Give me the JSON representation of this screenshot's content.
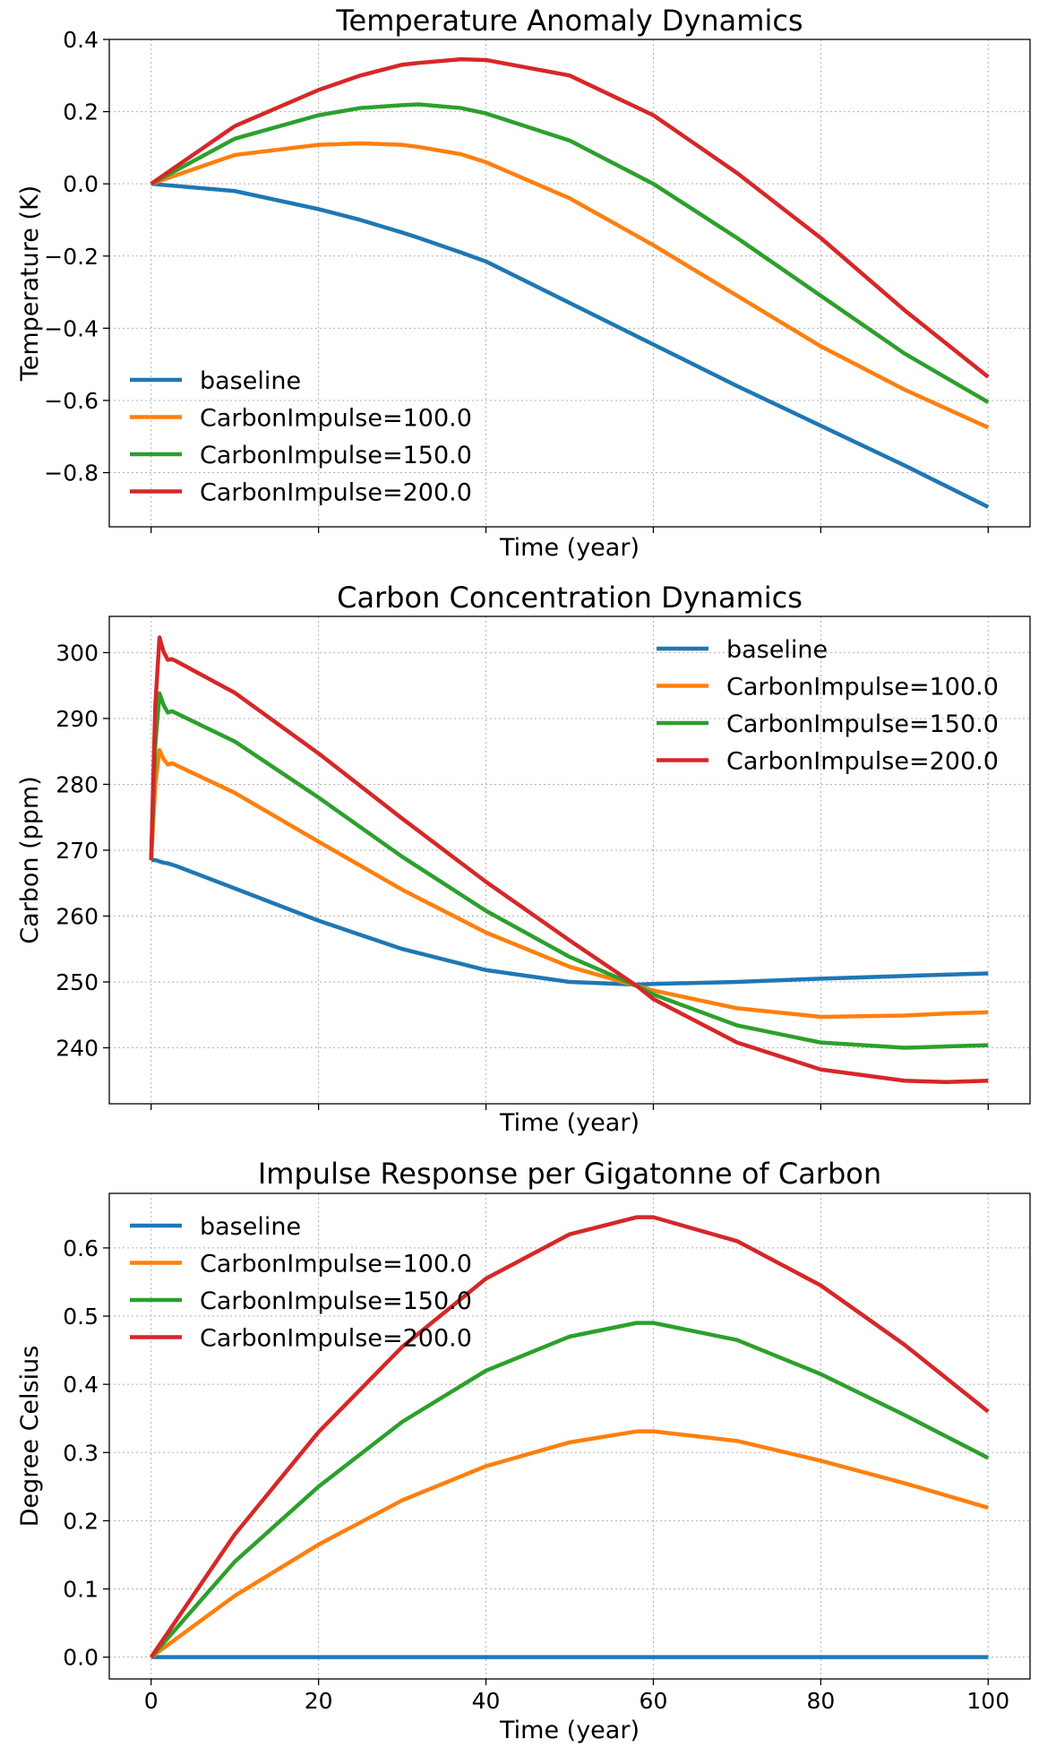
{
  "colors": {
    "baseline": "#1f77b4",
    "CarbonImpulse=100.0": "#ff7f0e",
    "CarbonImpulse=150.0": "#2ca02c",
    "CarbonImpulse=200.0": "#d62728"
  },
  "chart_data": [
    {
      "type": "line",
      "title": "Temperature Anomaly Dynamics",
      "xlabel": "Time (year)",
      "ylabel": "Temperature  (K)",
      "xlim": [
        -5,
        105
      ],
      "ylim": [
        -0.95,
        0.4
      ],
      "xticks": [
        0,
        20,
        40,
        60,
        80,
        100
      ],
      "show_xtick_labels": false,
      "yticks": [
        0.4,
        0.2,
        0.0,
        -0.2,
        -0.4,
        -0.6,
        -0.8
      ],
      "ytick_labels": [
        "0.4",
        "0.2",
        "0.0",
        "−0.2",
        "−0.4",
        "−0.6",
        "−0.8"
      ],
      "grid": true,
      "legend_position": "lower-left",
      "x": [
        0,
        10,
        20,
        25,
        30,
        32,
        37,
        40,
        50,
        60,
        70,
        80,
        90,
        100
      ],
      "series": [
        {
          "name": "baseline",
          "values": [
            0.0,
            -0.02,
            -0.07,
            -0.1,
            -0.135,
            -0.15,
            -0.19,
            -0.215,
            -0.33,
            -0.445,
            -0.56,
            -0.67,
            -0.78,
            -0.895
          ]
        },
        {
          "name": "CarbonImpulse=100.0",
          "values": [
            0.0,
            0.08,
            0.108,
            0.112,
            0.108,
            0.102,
            0.082,
            0.06,
            -0.04,
            -0.17,
            -0.31,
            -0.45,
            -0.57,
            -0.675
          ]
        },
        {
          "name": "CarbonImpulse=150.0",
          "values": [
            0.0,
            0.125,
            0.19,
            0.21,
            0.218,
            0.22,
            0.21,
            0.195,
            0.12,
            0.0,
            -0.15,
            -0.31,
            -0.47,
            -0.605
          ]
        },
        {
          "name": "CarbonImpulse=200.0",
          "values": [
            0.0,
            0.16,
            0.26,
            0.3,
            0.33,
            0.335,
            0.345,
            0.343,
            0.3,
            0.19,
            0.03,
            -0.15,
            -0.35,
            -0.535
          ]
        }
      ]
    },
    {
      "type": "line",
      "title": "Carbon Concentration Dynamics",
      "xlabel": "Time (year)",
      "ylabel": "Carbon (ppm)",
      "xlim": [
        -5,
        105
      ],
      "ylim": [
        231.5,
        305.5
      ],
      "xticks": [
        0,
        20,
        40,
        60,
        80,
        100
      ],
      "show_xtick_labels": false,
      "yticks": [
        300,
        290,
        280,
        270,
        260,
        250,
        240
      ],
      "ytick_labels": [
        "300",
        "290",
        "280",
        "270",
        "260",
        "250",
        "240"
      ],
      "grid": true,
      "legend_position": "upper-right",
      "x": [
        0,
        0.5,
        1,
        1.5,
        2,
        2.5,
        3,
        10,
        20,
        30,
        40,
        50,
        58,
        60,
        70,
        80,
        90,
        95,
        100
      ],
      "series": [
        {
          "name": "baseline",
          "values": [
            268.5,
            268.5,
            268.3,
            268.1,
            268.0,
            267.8,
            267.6,
            264.2,
            259.3,
            255.0,
            251.8,
            250.0,
            249.6,
            249.7,
            250.0,
            250.5,
            250.9,
            251.1,
            251.3
          ]
        },
        {
          "name": "CarbonImpulse=100.0",
          "values": [
            268.5,
            280.0,
            285.2,
            283.8,
            283.0,
            283.2,
            282.9,
            278.7,
            271.3,
            264.0,
            257.5,
            252.3,
            249.4,
            248.7,
            246.0,
            244.7,
            244.9,
            245.2,
            245.4
          ]
        },
        {
          "name": "CarbonImpulse=150.0",
          "values": [
            268.5,
            286.0,
            293.8,
            292.0,
            290.9,
            291.1,
            290.8,
            286.5,
            278.0,
            269.0,
            260.8,
            253.8,
            249.4,
            248.1,
            243.4,
            240.8,
            240.0,
            240.2,
            240.4
          ]
        },
        {
          "name": "CarbonImpulse=200.0",
          "values": [
            268.5,
            292.0,
            302.3,
            300.1,
            298.9,
            299.0,
            298.7,
            293.9,
            284.7,
            274.8,
            265.2,
            256.3,
            249.4,
            247.4,
            240.8,
            236.7,
            235.0,
            234.8,
            235.0
          ]
        }
      ]
    },
    {
      "type": "line",
      "title": "Impulse Response per Gigatonne of Carbon",
      "xlabel": "Time (year)",
      "ylabel": "Degree Celsius",
      "xlim": [
        -5,
        105
      ],
      "ylim": [
        -0.032,
        0.68
      ],
      "xticks": [
        0,
        20,
        40,
        60,
        80,
        100
      ],
      "xtick_labels": [
        "0",
        "20",
        "40",
        "60",
        "80",
        "100"
      ],
      "show_xtick_labels": true,
      "yticks": [
        0.0,
        0.1,
        0.2,
        0.3,
        0.4,
        0.5,
        0.6
      ],
      "ytick_labels": [
        "0.0",
        "0.1",
        "0.2",
        "0.3",
        "0.4",
        "0.5",
        "0.6"
      ],
      "grid": true,
      "legend_position": "upper-left",
      "x": [
        0,
        10,
        20,
        30,
        40,
        50,
        58,
        60,
        70,
        80,
        90,
        100
      ],
      "series": [
        {
          "name": "baseline",
          "values": [
            0,
            0,
            0,
            0,
            0,
            0,
            0,
            0,
            0,
            0,
            0,
            0
          ]
        },
        {
          "name": "CarbonImpulse=100.0",
          "values": [
            0.0,
            0.09,
            0.165,
            0.23,
            0.28,
            0.315,
            0.331,
            0.331,
            0.317,
            0.288,
            0.255,
            0.219
          ]
        },
        {
          "name": "CarbonImpulse=150.0",
          "values": [
            0.0,
            0.14,
            0.25,
            0.345,
            0.42,
            0.47,
            0.49,
            0.49,
            0.465,
            0.415,
            0.355,
            0.292
          ]
        },
        {
          "name": "CarbonImpulse=200.0",
          "values": [
            0.0,
            0.18,
            0.33,
            0.455,
            0.555,
            0.62,
            0.645,
            0.645,
            0.61,
            0.545,
            0.458,
            0.36
          ]
        }
      ]
    }
  ]
}
